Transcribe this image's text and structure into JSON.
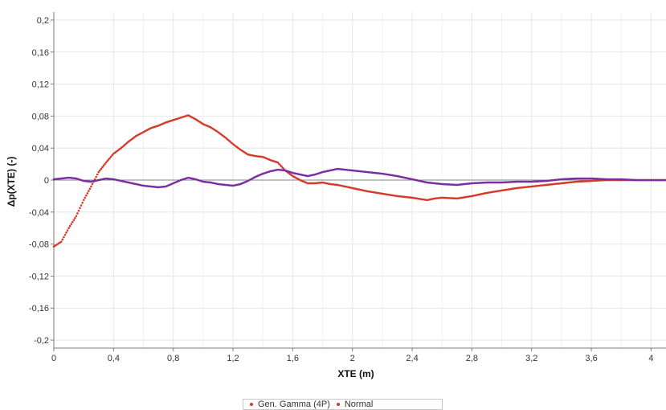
{
  "chart_data": {
    "type": "scatter",
    "title": "",
    "xlabel": "XTE (m)",
    "ylabel": "Δp(XTE) (-)",
    "xlim": [
      0,
      4.1
    ],
    "ylim": [
      -0.21,
      0.21
    ],
    "xticks": [
      0,
      0.4,
      0.8,
      1.2,
      1.6,
      2,
      2.4,
      2.8,
      3.2,
      3.6,
      4
    ],
    "xtick_labels": [
      "0",
      "0,4",
      "0,8",
      "1,2",
      "1,6",
      "2",
      "2,4",
      "2,8",
      "3,2",
      "3,6",
      "4"
    ],
    "yticks": [
      0.2,
      0.16,
      0.12,
      0.08,
      0.04,
      0,
      -0.04,
      -0.08,
      -0.12,
      -0.16,
      -0.2
    ],
    "ytick_labels": [
      "0,2",
      "0,16",
      "0,12",
      "0,08",
      "0,04",
      "0",
      "-0,04",
      "-0,08",
      "-0,12",
      "-0,16",
      "-0,2"
    ],
    "grid": true,
    "legend_position": "bottom-center",
    "series": [
      {
        "name": "Gen. Gamma (4P)",
        "color": "#d63a2a",
        "x": [
          0,
          0.05,
          0.1,
          0.15,
          0.2,
          0.25,
          0.3,
          0.35,
          0.4,
          0.45,
          0.5,
          0.55,
          0.6,
          0.65,
          0.7,
          0.75,
          0.8,
          0.85,
          0.9,
          0.95,
          1.0,
          1.05,
          1.1,
          1.15,
          1.2,
          1.25,
          1.3,
          1.35,
          1.4,
          1.45,
          1.5,
          1.55,
          1.6,
          1.65,
          1.7,
          1.75,
          1.8,
          1.85,
          1.9,
          1.95,
          2.0,
          2.05,
          2.1,
          2.2,
          2.3,
          2.4,
          2.5,
          2.55,
          2.6,
          2.7,
          2.8,
          2.9,
          3.0,
          3.1,
          3.2,
          3.3,
          3.4,
          3.5,
          3.6,
          3.7,
          3.8,
          3.9,
          4.0,
          4.1
        ],
        "y": [
          -0.083,
          -0.077,
          -0.06,
          -0.045,
          -0.025,
          -0.008,
          0.01,
          0.022,
          0.033,
          0.04,
          0.048,
          0.055,
          0.06,
          0.065,
          0.068,
          0.072,
          0.075,
          0.078,
          0.081,
          0.076,
          0.07,
          0.066,
          0.06,
          0.053,
          0.045,
          0.038,
          0.032,
          0.03,
          0.029,
          0.025,
          0.022,
          0.012,
          0.005,
          0.0,
          -0.004,
          -0.004,
          -0.003,
          -0.005,
          -0.006,
          -0.008,
          -0.01,
          -0.012,
          -0.014,
          -0.017,
          -0.02,
          -0.022,
          -0.025,
          -0.023,
          -0.022,
          -0.023,
          -0.02,
          -0.016,
          -0.013,
          -0.01,
          -0.008,
          -0.006,
          -0.004,
          -0.002,
          -0.001,
          0.0,
          0.0,
          0.0,
          0.0,
          0.0
        ]
      },
      {
        "name": "Normal",
        "color": "#7a2ea0",
        "x": [
          0,
          0.05,
          0.1,
          0.15,
          0.2,
          0.25,
          0.3,
          0.35,
          0.4,
          0.45,
          0.5,
          0.55,
          0.6,
          0.65,
          0.7,
          0.75,
          0.8,
          0.85,
          0.9,
          0.95,
          1.0,
          1.05,
          1.1,
          1.15,
          1.2,
          1.25,
          1.3,
          1.35,
          1.4,
          1.45,
          1.5,
          1.55,
          1.6,
          1.65,
          1.7,
          1.75,
          1.8,
          1.85,
          1.9,
          1.95,
          2.0,
          2.05,
          2.1,
          2.2,
          2.3,
          2.4,
          2.5,
          2.6,
          2.7,
          2.8,
          2.9,
          3.0,
          3.1,
          3.2,
          3.3,
          3.4,
          3.5,
          3.6,
          3.7,
          3.8,
          3.9,
          4.0,
          4.1
        ],
        "y": [
          0.001,
          0.002,
          0.003,
          0.002,
          -0.001,
          -0.002,
          0.0,
          0.002,
          0.001,
          -0.001,
          -0.003,
          -0.005,
          -0.007,
          -0.008,
          -0.009,
          -0.008,
          -0.004,
          0.0,
          0.003,
          0.001,
          -0.002,
          -0.003,
          -0.005,
          -0.006,
          -0.007,
          -0.005,
          -0.001,
          0.004,
          0.008,
          0.011,
          0.013,
          0.012,
          0.009,
          0.007,
          0.005,
          0.007,
          0.01,
          0.012,
          0.014,
          0.013,
          0.012,
          0.011,
          0.01,
          0.008,
          0.005,
          0.001,
          -0.003,
          -0.005,
          -0.006,
          -0.004,
          -0.003,
          -0.003,
          -0.002,
          -0.002,
          -0.001,
          0.001,
          0.002,
          0.002,
          0.001,
          0.001,
          0.0,
          0.0,
          0.0
        ]
      }
    ]
  }
}
